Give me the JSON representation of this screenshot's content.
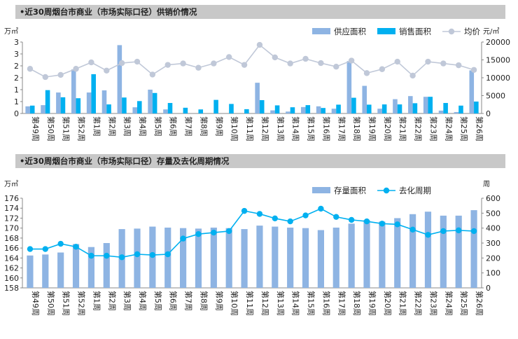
{
  "chart_data": [
    {
      "type": "bar",
      "title": "•近30周烟台市商业（市场实际口径）供销价情况",
      "left_unit": "万㎡",
      "right_unit": "元/㎡",
      "categories": [
        "第49周",
        "第50周",
        "第51周",
        "第52周",
        "第1周",
        "第2周",
        "第3周",
        "第4周",
        "第5周",
        "第6周",
        "第7周",
        "第8周",
        "第9周",
        "第10周",
        "第11周",
        "第12周",
        "第13周",
        "第14周",
        "第15周",
        "第16周",
        "第17周",
        "第18周",
        "第19周",
        "第20周",
        "第21周",
        "第22周",
        "第23周",
        "第24周",
        "第25周",
        "第26周"
      ],
      "left_ticks": [
        "0",
        "1",
        "1",
        "2",
        "2",
        "3",
        "3"
      ],
      "left_range": [
        0,
        3
      ],
      "right_ticks": [
        "0",
        "5000",
        "10000",
        "15000",
        "20000"
      ],
      "right_range": [
        0,
        20000
      ],
      "legend_position": "top-right",
      "series": [
        {
          "name": "供应面积",
          "kind": "bar",
          "axis": "left",
          "color": "#8eb4e3",
          "values": [
            0.3,
            0.35,
            0.88,
            1.85,
            0.88,
            0.97,
            2.87,
            0.26,
            1.0,
            0.17,
            0,
            0,
            0,
            0,
            0,
            1.29,
            0.13,
            0.08,
            0.27,
            0.3,
            0.2,
            2.2,
            1.16,
            0.2,
            0.6,
            0.73,
            0.7,
            0.12,
            0.06,
            1.81
          ]
        },
        {
          "name": "销售面积",
          "kind": "bar",
          "axis": "left",
          "color": "#00b0f0",
          "values": [
            0.33,
            0.98,
            0.68,
            0.64,
            1.65,
            0.38,
            0.67,
            0.52,
            0.86,
            0.44,
            0.24,
            0.17,
            0.57,
            0.4,
            0.18,
            0.56,
            0.34,
            0.26,
            0.35,
            0.23,
            0.37,
            0.66,
            0.37,
            0.38,
            0.38,
            0.43,
            0.7,
            0.44,
            0.33,
            0.5
          ]
        },
        {
          "name": "均价",
          "kind": "line",
          "axis": "right",
          "color": "#c0c8d8",
          "values": [
            12500,
            10200,
            10800,
            12500,
            14300,
            12000,
            14100,
            14500,
            10900,
            13600,
            14000,
            12800,
            14000,
            15800,
            13600,
            19200,
            15700,
            14000,
            15300,
            14100,
            13100,
            14800,
            11300,
            12400,
            14500,
            10600,
            14500,
            14000,
            13500,
            12200
          ]
        }
      ]
    },
    {
      "type": "bar",
      "title": "•近30周烟台市商业（市场实际口径）存量及去化周期情况",
      "left_unit": "万㎡",
      "right_unit": "周",
      "categories": [
        "第49周",
        "第50周",
        "第51周",
        "第52周",
        "第1周",
        "第2周",
        "第3周",
        "第4周",
        "第5周",
        "第6周",
        "第7周",
        "第8周",
        "第9周",
        "第10周",
        "第11周",
        "第12周",
        "第13周",
        "第14周",
        "第15周",
        "第16周",
        "第17周",
        "第18周",
        "第19周",
        "第20周",
        "第21周",
        "第22周",
        "第23周",
        "第24周",
        "第25周",
        "第26周"
      ],
      "left_ticks": [
        "158",
        "160",
        "162",
        "164",
        "166",
        "168",
        "170",
        "172",
        "174",
        "176"
      ],
      "left_range": [
        158,
        176
      ],
      "right_ticks": [
        "0",
        "100",
        "200",
        "300",
        "400",
        "500",
        "600"
      ],
      "right_range": [
        0,
        600
      ],
      "legend_position": "top-right",
      "series": [
        {
          "name": "存量面积",
          "kind": "bar",
          "axis": "left",
          "color": "#8eb4e3",
          "values": [
            164.5,
            164.7,
            165.1,
            166.8,
            166.2,
            167.0,
            169.8,
            169.9,
            170.3,
            170.1,
            170.0,
            169.9,
            170.1,
            170.0,
            169.8,
            170.5,
            170.3,
            170.1,
            170.0,
            169.6,
            170.1,
            170.9,
            171.6,
            171.3,
            172.0,
            172.8,
            173.3,
            172.5,
            172.5,
            173.6
          ]
        },
        {
          "name": "去化周期",
          "kind": "line",
          "axis": "right",
          "color": "#00b0f0",
          "values": [
            260,
            260,
            295,
            275,
            215,
            215,
            205,
            225,
            220,
            225,
            330,
            360,
            370,
            380,
            515,
            495,
            465,
            445,
            485,
            530,
            475,
            455,
            445,
            430,
            425,
            390,
            355,
            380,
            385,
            380
          ]
        }
      ]
    }
  ]
}
